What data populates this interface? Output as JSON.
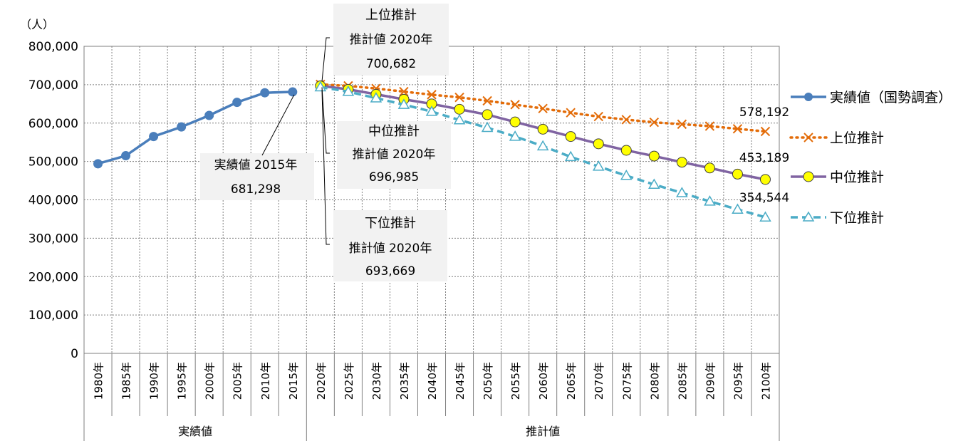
{
  "chart_data": {
    "type": "line",
    "unit_label": "（人）",
    "categories": [
      "1980年",
      "1985年",
      "1990年",
      "1995年",
      "2000年",
      "2005年",
      "2010年",
      "2015年",
      "2020年",
      "2025年",
      "2030年",
      "2035年",
      "2040年",
      "2045年",
      "2050年",
      "2055年",
      "2060年",
      "2065年",
      "2070年",
      "2075年",
      "2080年",
      "2085年",
      "2090年",
      "2095年",
      "2100年"
    ],
    "groups": [
      {
        "label": "実績値",
        "from": 0,
        "to": 7
      },
      {
        "label": "推計値",
        "from": 8,
        "to": 24
      }
    ],
    "ylim": [
      0,
      800000
    ],
    "yticks": [
      "0",
      "100,000",
      "200,000",
      "300,000",
      "400,000",
      "500,000",
      "600,000",
      "700,000",
      "800,000"
    ],
    "ytick_values": [
      0,
      100000,
      200000,
      300000,
      400000,
      500000,
      600000,
      700000,
      800000
    ],
    "grid": true,
    "legend_placement": "right",
    "series": [
      {
        "name": "実績値（国勢調査）",
        "color": "#4a7ebb",
        "style": "solid",
        "marker": "circle",
        "values": [
          494000,
          515000,
          565000,
          590000,
          620000,
          654000,
          679000,
          681298,
          null,
          null,
          null,
          null,
          null,
          null,
          null,
          null,
          null,
          null,
          null,
          null,
          null,
          null,
          null,
          null,
          null
        ]
      },
      {
        "name": "上位推計",
        "color": "#e36c09",
        "style": "dotted",
        "marker": "x",
        "values": [
          null,
          null,
          null,
          null,
          null,
          null,
          null,
          null,
          700682,
          697000,
          690000,
          682000,
          674000,
          667000,
          658000,
          648000,
          638000,
          627000,
          617000,
          609000,
          602000,
          597000,
          592000,
          585000,
          578192
        ]
      },
      {
        "name": "中位推計",
        "color": "#8064a2",
        "style": "solid",
        "marker": "circle-yellow",
        "values": [
          null,
          null,
          null,
          null,
          null,
          null,
          null,
          null,
          696985,
          688000,
          675000,
          662000,
          650000,
          636000,
          622000,
          603000,
          584000,
          565000,
          546000,
          529000,
          514000,
          498000,
          483000,
          467000,
          453189
        ]
      },
      {
        "name": "下位推計",
        "color": "#4bacc6",
        "style": "dashed",
        "marker": "triangle",
        "values": [
          null,
          null,
          null,
          null,
          null,
          null,
          null,
          null,
          693669,
          682000,
          665000,
          648000,
          630000,
          608000,
          588000,
          565000,
          540000,
          512000,
          487000,
          463000,
          440000,
          418000,
          396000,
          375000,
          354544
        ]
      }
    ],
    "callouts": [
      {
        "lines": [
          "上位推計",
          "推計値 2020年",
          "700,682"
        ]
      },
      {
        "lines": [
          "中位推計",
          "推計値 2020年",
          "696,985"
        ]
      },
      {
        "lines": [
          "下位推計",
          "推計値 2020年",
          "693,669"
        ]
      },
      {
        "lines": [
          "実績値 2015年",
          "681,298"
        ]
      }
    ],
    "end_labels": [
      "578,192",
      "453,189",
      "354,544"
    ]
  }
}
